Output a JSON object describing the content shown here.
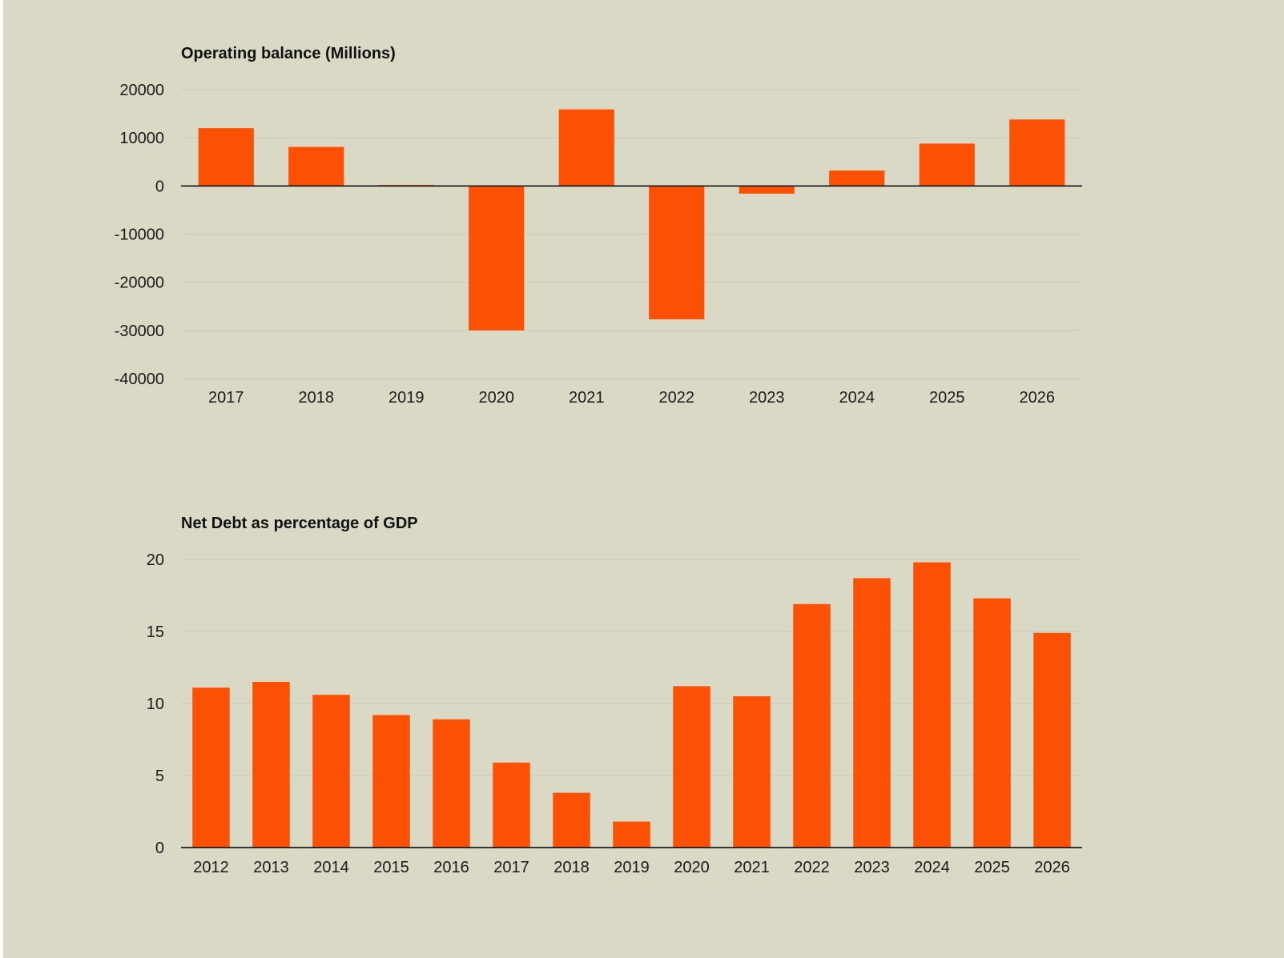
{
  "colors": {
    "bar": "#fc5004",
    "background": "#d9d9c6",
    "grid": "#c9c9b8",
    "baseline": "#000000"
  },
  "chart_data": [
    {
      "type": "bar",
      "title": "Operating balance (Millions)",
      "categories": [
        "2017",
        "2018",
        "2019",
        "2020",
        "2021",
        "2022",
        "2023",
        "2024",
        "2025",
        "2026"
      ],
      "values": [
        12000,
        8100,
        200,
        -30000,
        15900,
        -27700,
        -1600,
        3200,
        8800,
        13800
      ],
      "ylim": [
        -40000,
        20000
      ],
      "yticks": [
        20000,
        10000,
        0,
        -10000,
        -20000,
        -30000,
        -40000
      ],
      "ytick_labels": [
        "20000",
        "10000",
        "0",
        "-10000",
        "-20000",
        "-30000",
        "-40000"
      ],
      "xlabel": "",
      "ylabel": "",
      "grid": true
    },
    {
      "type": "bar",
      "title": "Net Debt as percentage of GDP",
      "categories": [
        "2012",
        "2013",
        "2014",
        "2015",
        "2016",
        "2017",
        "2018",
        "2019",
        "2020",
        "2021",
        "2022",
        "2023",
        "2024",
        "2025",
        "2026"
      ],
      "values": [
        11.1,
        11.5,
        10.6,
        9.2,
        8.9,
        5.9,
        3.8,
        1.8,
        11.2,
        10.5,
        16.9,
        18.7,
        19.8,
        17.3,
        14.9
      ],
      "ylim": [
        0,
        20
      ],
      "yticks": [
        20,
        15,
        10,
        5,
        0
      ],
      "ytick_labels": [
        "20",
        "15",
        "10",
        "5",
        "0"
      ],
      "xlabel": "",
      "ylabel": "",
      "grid": true
    }
  ]
}
